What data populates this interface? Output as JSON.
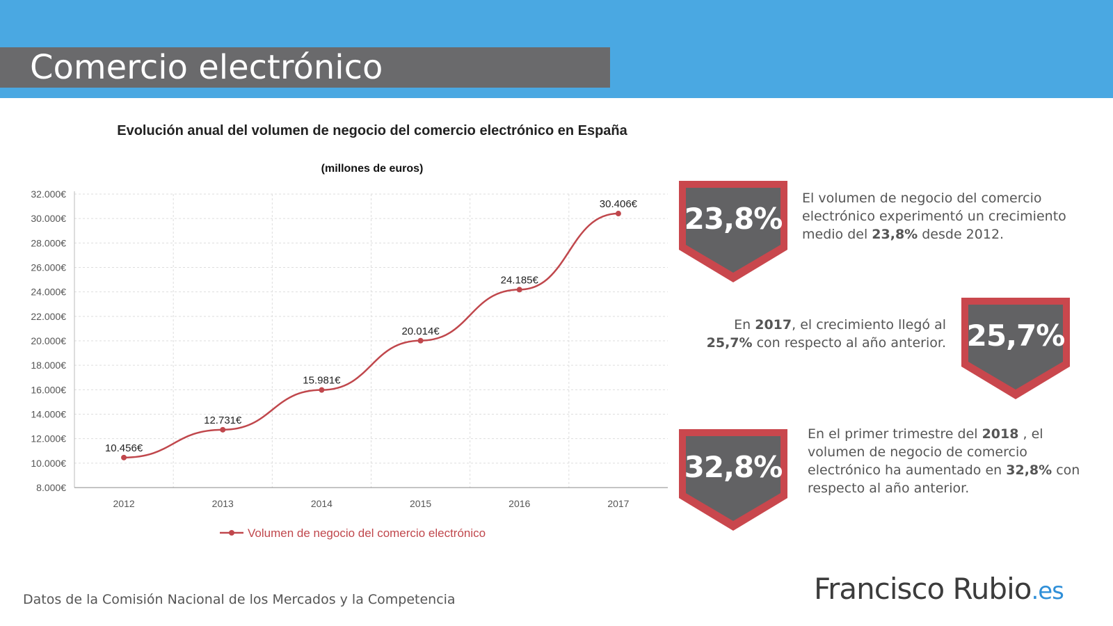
{
  "page": {
    "title": "Comercio electrónico",
    "footer": "Datos de la Comisión Nacional de los Mercados y la Competencia",
    "logo_main": "Francisco Rubio",
    "logo_tld": ".es"
  },
  "chart_data": {
    "type": "line",
    "title": "Evolución anual del volumen de negocio del comercio electrónico en España",
    "subtitle": "(millones de euros)",
    "categories": [
      "2012",
      "2013",
      "2014",
      "2015",
      "2016",
      "2017"
    ],
    "series": [
      {
        "name": "Volumen de negocio del comercio electrónico",
        "values": [
          10456,
          12731,
          15981,
          20014,
          24185,
          30406
        ],
        "labels": [
          "10.456€",
          "12.731€",
          "15.981€",
          "20.014€",
          "24.185€",
          "30.406€"
        ],
        "color": "#c0474c"
      }
    ],
    "ylim": [
      8000,
      32000
    ],
    "yticks": [
      8000,
      10000,
      12000,
      14000,
      16000,
      18000,
      20000,
      22000,
      24000,
      26000,
      28000,
      30000,
      32000
    ],
    "ytick_labels": [
      "8.000€",
      "10.000€",
      "12.000€",
      "14.000€",
      "16.000€",
      "18.000€",
      "20.000€",
      "22.000€",
      "24.000€",
      "26.000€",
      "28.000€",
      "30.000€",
      "32.000€"
    ],
    "grid": true,
    "legend_position": "bottom"
  },
  "stats": [
    {
      "value": "23,8%",
      "text_parts": [
        "El volumen de negocio del comercio electrónico experimentó un crecimiento medio del ",
        "23,8%",
        " desde 2012."
      ]
    },
    {
      "value": "25,7%",
      "text_parts": [
        "En ",
        "2017",
        ", el crecimiento llegó al ",
        "25,7%",
        " con respecto al año anterior."
      ]
    },
    {
      "value": "32,8%",
      "text_parts": [
        "En el primer trimestre del ",
        "2018",
        " , el volumen de negocio de comercio electrónico ha aumentado en ",
        "32,8%",
        " con respecto al año anterior."
      ]
    }
  ],
  "colors": {
    "header_blue": "#4aa8e2",
    "title_bar": "#6a6a6c",
    "badge_red": "#c9474d",
    "badge_gray": "#626264",
    "line": "#c0474c"
  }
}
